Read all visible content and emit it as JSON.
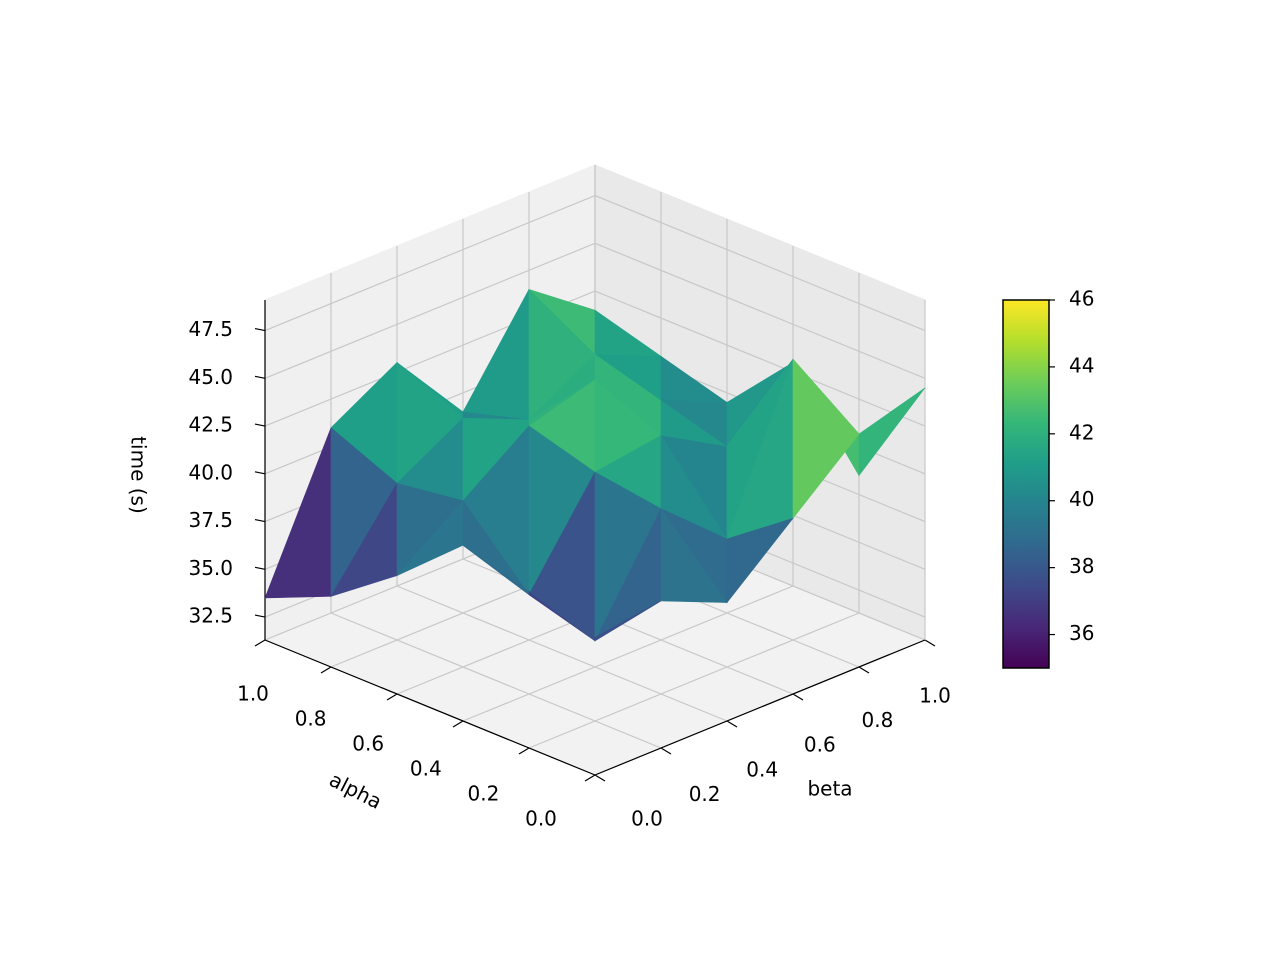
{
  "chart_data": {
    "type": "surface3d",
    "xlabel": "beta",
    "ylabel": "alpha",
    "zlabel": "time (s)",
    "x": [
      0,
      0.2,
      0.4,
      0.6,
      0.8,
      1
    ],
    "y": [
      0,
      0.2,
      0.4,
      0.6,
      0.8,
      1
    ],
    "z": [
      [
        38.5,
        39.0,
        37.5,
        40.5,
        43.5,
        44.5
      ],
      [
        39.5,
        35.5,
        41.0,
        38.0,
        46.0,
        38.5
      ],
      [
        40.5,
        36.5,
        41.5,
        42.0,
        40.0,
        43.0
      ],
      [
        37.5,
        40.0,
        42.5,
        43.5,
        41.0,
        39.5
      ],
      [
        35.0,
        39.5,
        41.5,
        40.0,
        42.0,
        40.5
      ],
      [
        33.5,
        41.0,
        43.0,
        39.0,
        44.0,
        41.5
      ]
    ],
    "xlim": [
      0,
      1
    ],
    "ylim": [
      0,
      1
    ],
    "zlim": [
      31.3,
      49.1
    ],
    "xticks": [
      {
        "value": 0,
        "label": "0.0"
      },
      0.2,
      0.4,
      0.6,
      0.8,
      {
        "value": 1,
        "label": "1.0"
      }
    ],
    "yticks": [
      {
        "value": 0,
        "label": "0.0"
      },
      0.2,
      0.4,
      0.6,
      0.8,
      {
        "value": 1,
        "label": "1.0"
      }
    ],
    "zticks": [
      32.5,
      {
        "value": 35,
        "label": "35.0"
      },
      37.5,
      {
        "value": 40,
        "label": "40.0"
      },
      42.5,
      {
        "value": 45,
        "label": "45.0"
      },
      47.5
    ],
    "colormap": "viridis",
    "clim": [
      35,
      46
    ],
    "colorbar_ticks": [
      36,
      38,
      40,
      42,
      44,
      46
    ],
    "grid": true
  }
}
